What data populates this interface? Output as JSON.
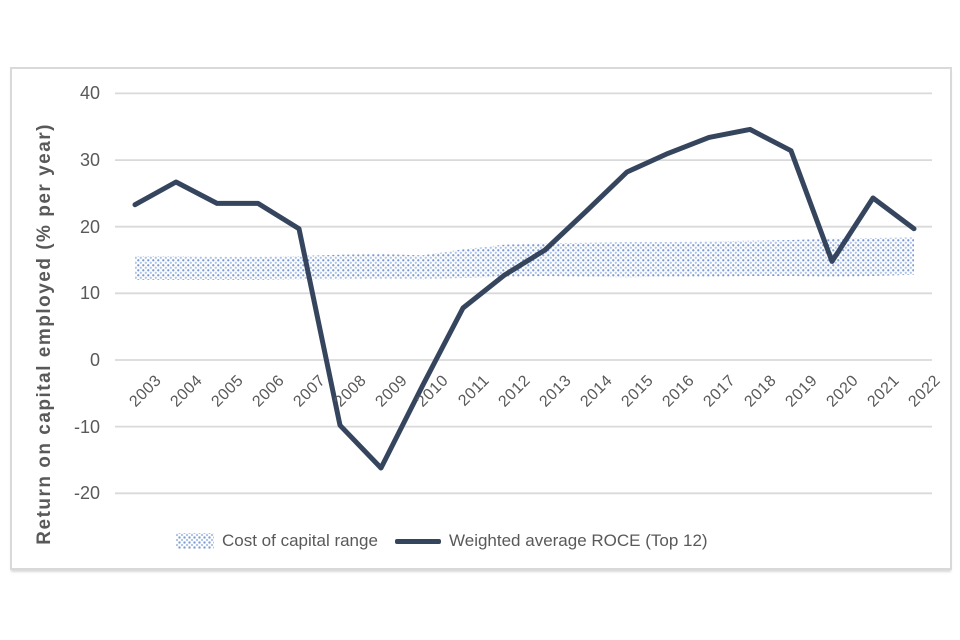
{
  "chart_data": {
    "type": "combo",
    "title": "",
    "xlabel": "",
    "ylabel": "Return on capital employed (% per year)",
    "categories": [
      "2003",
      "2004",
      "2005",
      "2006",
      "2007",
      "2008",
      "2009",
      "2010",
      "2011",
      "2012",
      "2013",
      "2014",
      "2015",
      "2016",
      "2017",
      "2018",
      "2019",
      "2020",
      "2021",
      "2022"
    ],
    "y_ticks": [
      40,
      30,
      20,
      10,
      0,
      -10,
      -20
    ],
    "ylim": [
      -22,
      42
    ],
    "grid": true,
    "legend_position": "bottom",
    "series": [
      {
        "name": "Cost of capital range",
        "type": "area-range",
        "lower": [
          12.0,
          12.0,
          12.0,
          12.0,
          12.1,
          12.1,
          12.2,
          12.1,
          12.3,
          12.5,
          12.6,
          12.5,
          12.4,
          12.5,
          12.5,
          12.6,
          12.6,
          12.5,
          12.6,
          12.8
        ],
        "upper": [
          15.6,
          15.6,
          15.5,
          15.5,
          15.6,
          15.8,
          15.9,
          15.7,
          16.6,
          17.3,
          17.5,
          17.6,
          17.7,
          17.7,
          17.8,
          17.9,
          18.0,
          18.2,
          18.3,
          18.4
        ],
        "pattern": "dotted",
        "dot_color_dark": "#7d9ad3",
        "dot_color_light": "#b0c5e9"
      },
      {
        "name": "Weighted average ROCE (Top 12)",
        "type": "line",
        "values": [
          23.3,
          26.7,
          23.5,
          23.5,
          19.7,
          -9.8,
          -16.2,
          -4.0,
          7.8,
          12.7,
          16.5,
          22.3,
          28.2,
          31.0,
          33.4,
          34.6,
          31.4,
          14.8,
          24.3,
          19.7
        ],
        "color": "#36455e"
      }
    ],
    "colors": {
      "gridline": "#d9d9d9",
      "axis_text": "#595959",
      "frame_border": "#d9d9d9",
      "background": "#ffffff"
    }
  }
}
